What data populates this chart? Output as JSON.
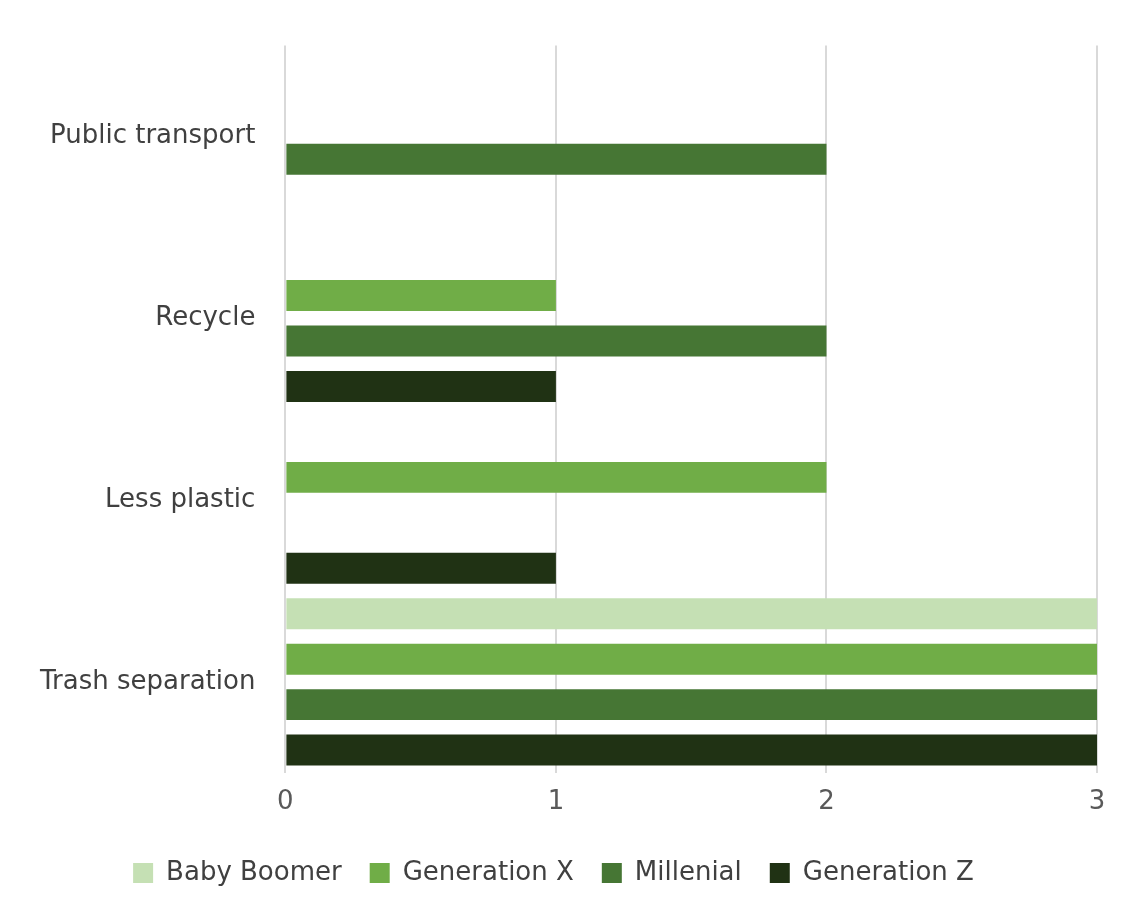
{
  "chart_data": {
    "type": "bar",
    "orientation": "horizontal",
    "categories": [
      "Public transport",
      "Recycle",
      "Less plastic",
      "Trash separation"
    ],
    "series": [
      {
        "name": "Baby Boomer",
        "color": "#c5e0b4",
        "values": [
          0,
          0,
          0,
          3
        ]
      },
      {
        "name": "Generation X",
        "color": "#70ad47",
        "values": [
          0,
          1,
          2,
          3
        ]
      },
      {
        "name": "Millenial",
        "color": "#467634",
        "values": [
          2,
          2,
          0,
          3
        ]
      },
      {
        "name": "Generation Z",
        "color": "#203214",
        "values": [
          0,
          1,
          1,
          3
        ]
      }
    ],
    "xlim": [
      0,
      3
    ],
    "xticks": [
      0,
      1,
      2,
      3
    ],
    "grid": "x",
    "legend": "bottom"
  }
}
